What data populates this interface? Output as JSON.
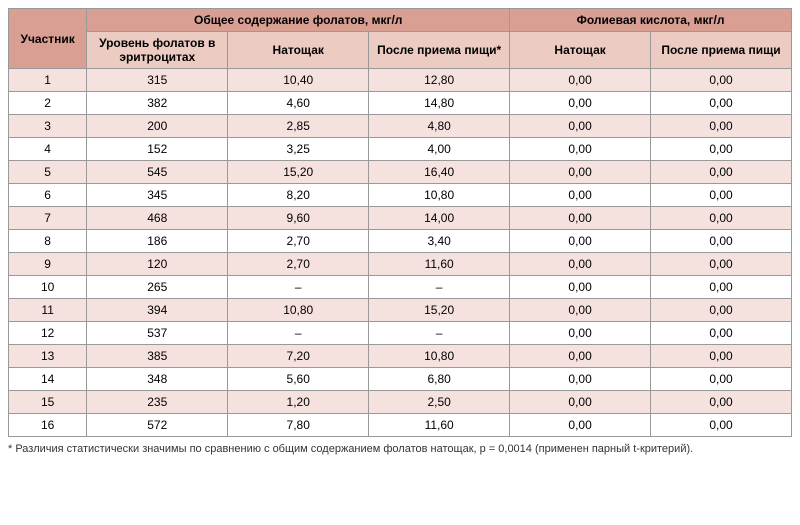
{
  "header": {
    "participant": "Участник",
    "group1": "Общее содержание фолатов, мкг/л",
    "group2": "Фолиевая кислота, мкг/л",
    "sub": {
      "erythro": "Уровень фолатов в эритроцитах",
      "fasting": "Натощак",
      "postprandial": "После приема пищи",
      "postprandial_star": "После приема пищи*"
    }
  },
  "rows": [
    {
      "n": "1",
      "a": "315",
      "b": "10,40",
      "c": "12,80",
      "d": "0,00",
      "e": "0,00"
    },
    {
      "n": "2",
      "a": "382",
      "b": "4,60",
      "c": "14,80",
      "d": "0,00",
      "e": "0,00"
    },
    {
      "n": "3",
      "a": "200",
      "b": "2,85",
      "c": "4,80",
      "d": "0,00",
      "e": "0,00"
    },
    {
      "n": "4",
      "a": "152",
      "b": "3,25",
      "c": "4,00",
      "d": "0,00",
      "e": "0,00"
    },
    {
      "n": "5",
      "a": "545",
      "b": "15,20",
      "c": "16,40",
      "d": "0,00",
      "e": "0,00"
    },
    {
      "n": "6",
      "a": "345",
      "b": "8,20",
      "c": "10,80",
      "d": "0,00",
      "e": "0,00"
    },
    {
      "n": "7",
      "a": "468",
      "b": "9,60",
      "c": "14,00",
      "d": "0,00",
      "e": "0,00"
    },
    {
      "n": "8",
      "a": "186",
      "b": "2,70",
      "c": "3,40",
      "d": "0,00",
      "e": "0,00"
    },
    {
      "n": "9",
      "a": "120",
      "b": "2,70",
      "c": "11,60",
      "d": "0,00",
      "e": "0,00"
    },
    {
      "n": "10",
      "a": "265",
      "b": "–",
      "c": "–",
      "d": "0,00",
      "e": "0,00"
    },
    {
      "n": "11",
      "a": "394",
      "b": "10,80",
      "c": "15,20",
      "d": "0,00",
      "e": "0,00"
    },
    {
      "n": "12",
      "a": "537",
      "b": "–",
      "c": "–",
      "d": "0,00",
      "e": "0,00"
    },
    {
      "n": "13",
      "a": "385",
      "b": "7,20",
      "c": "10,80",
      "d": "0,00",
      "e": "0,00"
    },
    {
      "n": "14",
      "a": "348",
      "b": "5,60",
      "c": "6,80",
      "d": "0,00",
      "e": "0,00"
    },
    {
      "n": "15",
      "a": "235",
      "b": "1,20",
      "c": "2,50",
      "d": "0,00",
      "e": "0,00"
    },
    {
      "n": "16",
      "a": "572",
      "b": "7,80",
      "c": "11,60",
      "d": "0,00",
      "e": "0,00"
    }
  ],
  "footnote": "* Различия статистически значимы по сравнению с общим содержанием фолатов натощак, p = 0,0014 (применен парный t-критерий).",
  "style": {
    "header_bg": "#da9f93",
    "subheader_bg": "#eccbc3",
    "odd_row_bg": "#f5e2de",
    "even_row_bg": "#ffffff",
    "border_color": "#999999",
    "font_size_pt": 12
  }
}
